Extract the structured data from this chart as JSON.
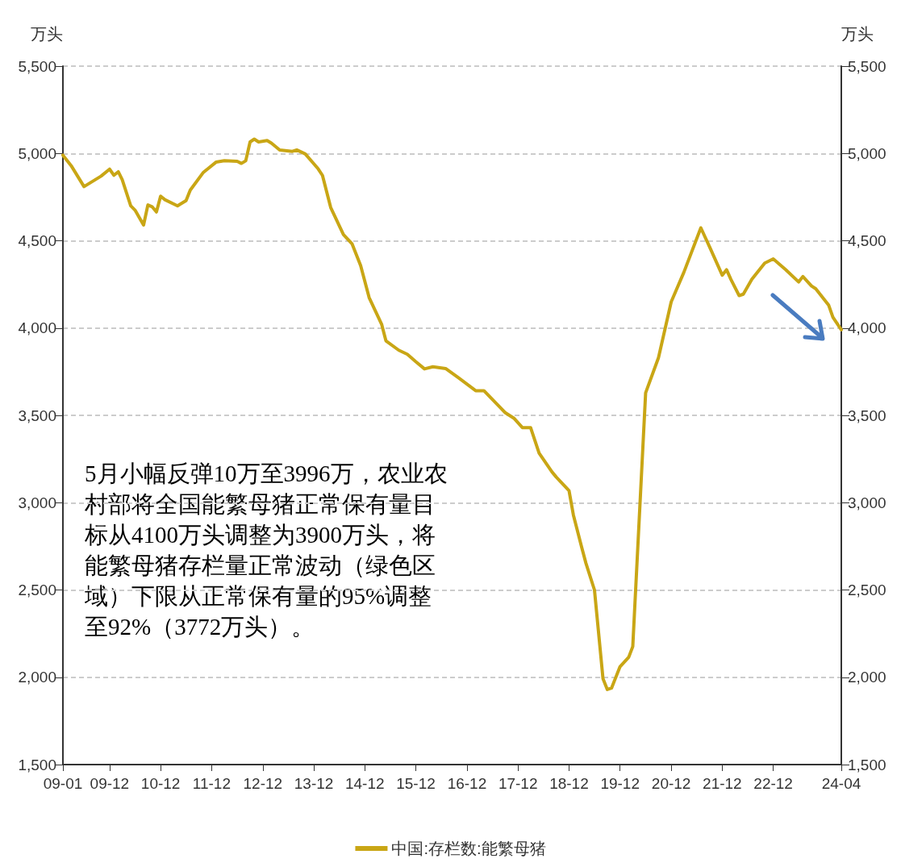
{
  "chart_data": {
    "type": "line",
    "ylabel": "万头",
    "y2label": "万头",
    "x": [
      "2009-01",
      "2009-03",
      "2009-06",
      "2009-10",
      "2009-12",
      "2010-01",
      "2010-02",
      "2010-03",
      "2010-05",
      "2010-06",
      "2010-08",
      "2010-09",
      "2010-10",
      "2010-11",
      "2010-12",
      "2011-01",
      "2011-04",
      "2011-06",
      "2011-07",
      "2011-10",
      "2012-01",
      "2012-03",
      "2012-06",
      "2012-07",
      "2012-08",
      "2012-09",
      "2012-10",
      "2012-11",
      "2013-01",
      "2013-02",
      "2013-04",
      "2013-07",
      "2013-08",
      "2013-10",
      "2014-01",
      "2014-02",
      "2014-04",
      "2014-07",
      "2014-09",
      "2014-11",
      "2015-01",
      "2015-04",
      "2015-05",
      "2015-08",
      "2015-10",
      "2015-12",
      "2016-02",
      "2016-04",
      "2016-07",
      "2016-10",
      "2017-02",
      "2017-04",
      "2017-09",
      "2017-11",
      "2018-01",
      "2018-03",
      "2018-05",
      "2018-08",
      "2018-09",
      "2018-12",
      "2019-01",
      "2019-03",
      "2019-04",
      "2019-06",
      "2019-08",
      "2019-09",
      "2019-10",
      "2019-12",
      "2020-02",
      "2020-03",
      "2020-06",
      "2020-09",
      "2020-12",
      "2021-03",
      "2021-07",
      "2021-09",
      "2021-12",
      "2022-01",
      "2022-02",
      "2022-04",
      "2022-05",
      "2022-07",
      "2022-10",
      "2022-12",
      "2023-03",
      "2023-06",
      "2023-07",
      "2023-09",
      "2023-10",
      "2024-01",
      "2024-02",
      "2024-04"
    ],
    "series": [
      {
        "name": "中国:存栏数:能繁母猪",
        "color": "#c9a615",
        "values": [
          4990,
          4930,
          4810,
          4870,
          4910,
          4875,
          4895,
          4850,
          4700,
          4675,
          4590,
          4705,
          4695,
          4665,
          4755,
          4735,
          4700,
          4730,
          4790,
          4890,
          4950,
          4958,
          4955,
          4943,
          4958,
          5066,
          5082,
          5066,
          5074,
          5059,
          5020,
          5012,
          5020,
          4997,
          4912,
          4874,
          4690,
          4535,
          4482,
          4358,
          4174,
          4020,
          3927,
          3873,
          3850,
          3807,
          3766,
          3778,
          3768,
          3715,
          3641,
          3641,
          3515,
          3484,
          3430,
          3430,
          3284,
          3176,
          3146,
          3069,
          2930,
          2746,
          2653,
          2500,
          1992,
          1930,
          1938,
          2061,
          2115,
          2176,
          3629,
          3830,
          4150,
          4318,
          4574,
          4466,
          4303,
          4334,
          4279,
          4186,
          4194,
          4279,
          4372,
          4396,
          4334,
          4264,
          4295,
          4241,
          4225,
          4132,
          4062,
          3990
        ]
      }
    ],
    "xlim": [
      "2009-01",
      "2024-04"
    ],
    "xticks": [
      {
        "value": "2009-01",
        "label": "09-01"
      },
      {
        "value": "2009-12",
        "label": "09-12"
      },
      {
        "value": "2010-12",
        "label": "10-12"
      },
      {
        "value": "2011-12",
        "label": "11-12"
      },
      {
        "value": "2012-12",
        "label": "12-12"
      },
      {
        "value": "2013-12",
        "label": "13-12"
      },
      {
        "value": "2014-12",
        "label": "14-12"
      },
      {
        "value": "2015-12",
        "label": "15-12"
      },
      {
        "value": "2016-12",
        "label": "16-12"
      },
      {
        "value": "2017-12",
        "label": "17-12"
      },
      {
        "value": "2018-12",
        "label": "18-12"
      },
      {
        "value": "2019-12",
        "label": "19-12"
      },
      {
        "value": "2020-12",
        "label": "20-12"
      },
      {
        "value": "2021-12",
        "label": "21-12"
      },
      {
        "value": "2022-12",
        "label": "22-12"
      },
      {
        "value": "2024-04",
        "label": "24-04"
      }
    ],
    "ylim": [
      1500,
      5500
    ],
    "yticks": [
      {
        "value": 1500,
        "label": "1,500"
      },
      {
        "value": 2000,
        "label": "2,000"
      },
      {
        "value": 2500,
        "label": "2,500"
      },
      {
        "value": 3000,
        "label": "3,000"
      },
      {
        "value": 3500,
        "label": "3,500"
      },
      {
        "value": 4000,
        "label": "4,000"
      },
      {
        "value": 4500,
        "label": "4,500"
      },
      {
        "value": 5000,
        "label": "5,000"
      },
      {
        "value": 5500,
        "label": "5,500"
      }
    ],
    "y2lim": [
      1500,
      5500
    ],
    "y2ticks": [
      {
        "value": 1500,
        "label": "1,500"
      },
      {
        "value": 2000,
        "label": "2,000"
      },
      {
        "value": 2500,
        "label": "2,500"
      },
      {
        "value": 3000,
        "label": "3,000"
      },
      {
        "value": 3500,
        "label": "3,500"
      },
      {
        "value": 4000,
        "label": "4,000"
      },
      {
        "value": 4500,
        "label": "4,500"
      },
      {
        "value": 5000,
        "label": "5,000"
      },
      {
        "value": 5500,
        "label": "5,500"
      }
    ],
    "grid": "y",
    "legend": "bottom",
    "marker": "none",
    "line_style": "solid",
    "annotations": [
      "5月小幅反弹10万至3996万，农业农村部将全国能繁母猪正常保有量目标从4100万头调整为3900万头，将能繁母猪存栏量正常波动（绿色区域）下限从正常保有量的95%调整至92%（3772万头）。"
    ]
  }
}
